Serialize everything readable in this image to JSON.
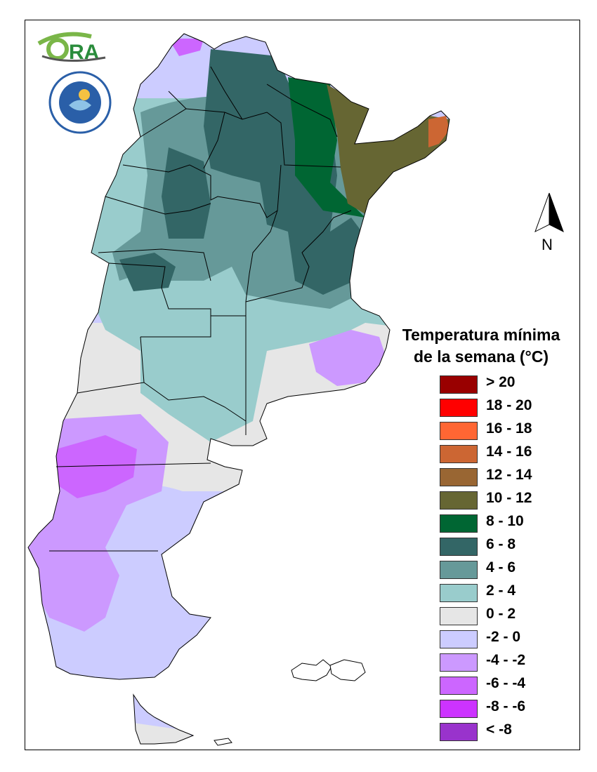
{
  "legend": {
    "title_line1": "Temperatura mínima",
    "title_line2": "de la semana (°C)",
    "classes": [
      {
        "label": "> 20",
        "color": "#990000"
      },
      {
        "label": "18 - 20",
        "color": "#ff0000"
      },
      {
        "label": "16 - 18",
        "color": "#ff6633"
      },
      {
        "label": "14 - 16",
        "color": "#cc6633"
      },
      {
        "label": "12 - 14",
        "color": "#996633"
      },
      {
        "label": "10 - 12",
        "color": "#666633"
      },
      {
        "label": "8 - 10",
        "color": "#006633"
      },
      {
        "label": "6 - 8",
        "color": "#336666"
      },
      {
        "label": "4 - 6",
        "color": "#669999"
      },
      {
        "label": "2 - 4",
        "color": "#99cccc"
      },
      {
        "label": "0 - 2",
        "color": "#e6e6e6"
      },
      {
        "label": "-2 - 0",
        "color": "#ccccff"
      },
      {
        "label": "-4 - -2",
        "color": "#cc99ff"
      },
      {
        "label": "-6 - -4",
        "color": "#cc66ff"
      },
      {
        "label": "-8 - -6",
        "color": "#cc33ff"
      },
      {
        "label": "< -8",
        "color": "#9933cc"
      }
    ]
  },
  "north_arrow": {
    "label": "N"
  },
  "logos": {
    "ora": "ORA",
    "smn": "SERVICIO METEOROLÓGICO NACIONAL ARGENTINA"
  },
  "map": {
    "country": "Argentina",
    "variable": "weekly minimum temperature"
  }
}
